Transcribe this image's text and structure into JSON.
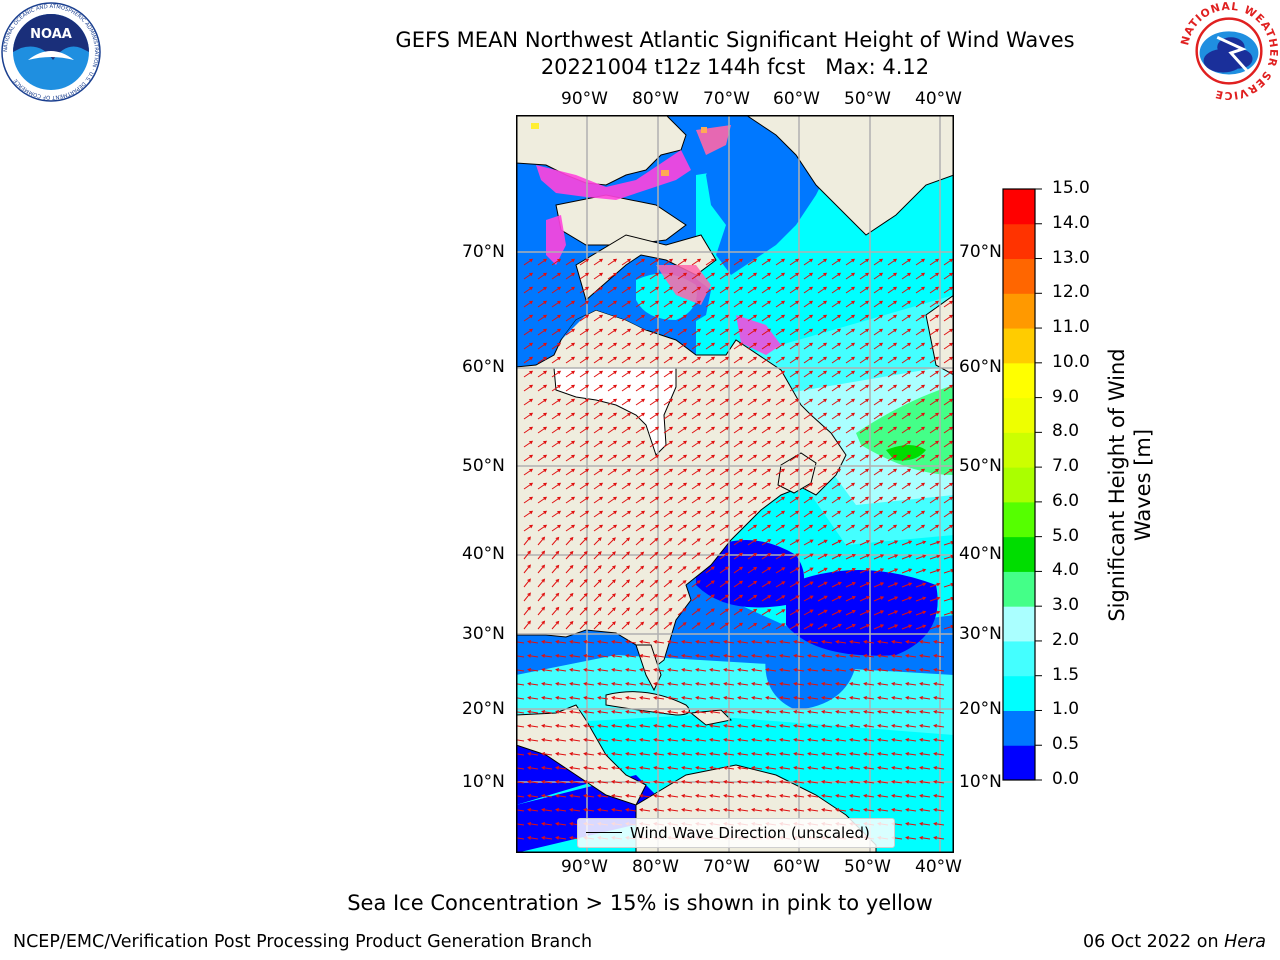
{
  "header": {
    "title_line1": "GEFS MEAN Northwest Atlantic Significant Height of Wind Waves",
    "title_line2": "20221004 t12z 144h fcst   Max: 4.12"
  },
  "logos": {
    "noaa_text": "NOAA",
    "noaa_ring_text": "NATIONAL OCEANIC AND ATMOSPHERIC ADMINISTRATION · U.S. DEPARTMENT OF COMMERCE",
    "nws_ring_text": "NATIONAL WEATHER SERVICE"
  },
  "map": {
    "lon_labels": [
      "90°W",
      "80°W",
      "70°W",
      "60°W",
      "50°W",
      "40°W"
    ],
    "lat_labels": [
      "70°N",
      "60°N",
      "50°N",
      "40°N",
      "30°N",
      "20°N",
      "10°N"
    ],
    "legend_label": "Wind Wave Direction (unscaled)",
    "colors": {
      "land": "#efedde",
      "missing": "#ffffff",
      "grid": "#b0b0b0",
      "arrows": "#e01010",
      "sea_ice": [
        "#ff44dd",
        "#ff66aa",
        "#ffaa55",
        "#ffee33"
      ]
    }
  },
  "colorbar": {
    "label": "Significant Height of Wind\nWaves [m]",
    "ticks": [
      "0.0",
      "0.5",
      "1.0",
      "1.5",
      "2.0",
      "3.0",
      "4.0",
      "5.0",
      "6.0",
      "7.0",
      "8.0",
      "9.0",
      "10.0",
      "11.0",
      "12.0",
      "13.0",
      "14.0",
      "15.0"
    ],
    "colors": [
      "#0000ff",
      "#0078ff",
      "#00ffff",
      "#44ffff",
      "#aaffff",
      "#44ff88",
      "#00dd00",
      "#55ff00",
      "#aaff00",
      "#ccff00",
      "#eeff00",
      "#ffff00",
      "#ffcc00",
      "#ff9900",
      "#ff6600",
      "#ff3300",
      "#ff0000"
    ]
  },
  "footer": {
    "footnote": "Sea Ice Concentration > 15% is shown in pink to yellow",
    "credit": "NCEP/EMC/Verification Post Processing Product Generation Branch",
    "date": "06 Oct 2022 on",
    "host": "Hera"
  }
}
